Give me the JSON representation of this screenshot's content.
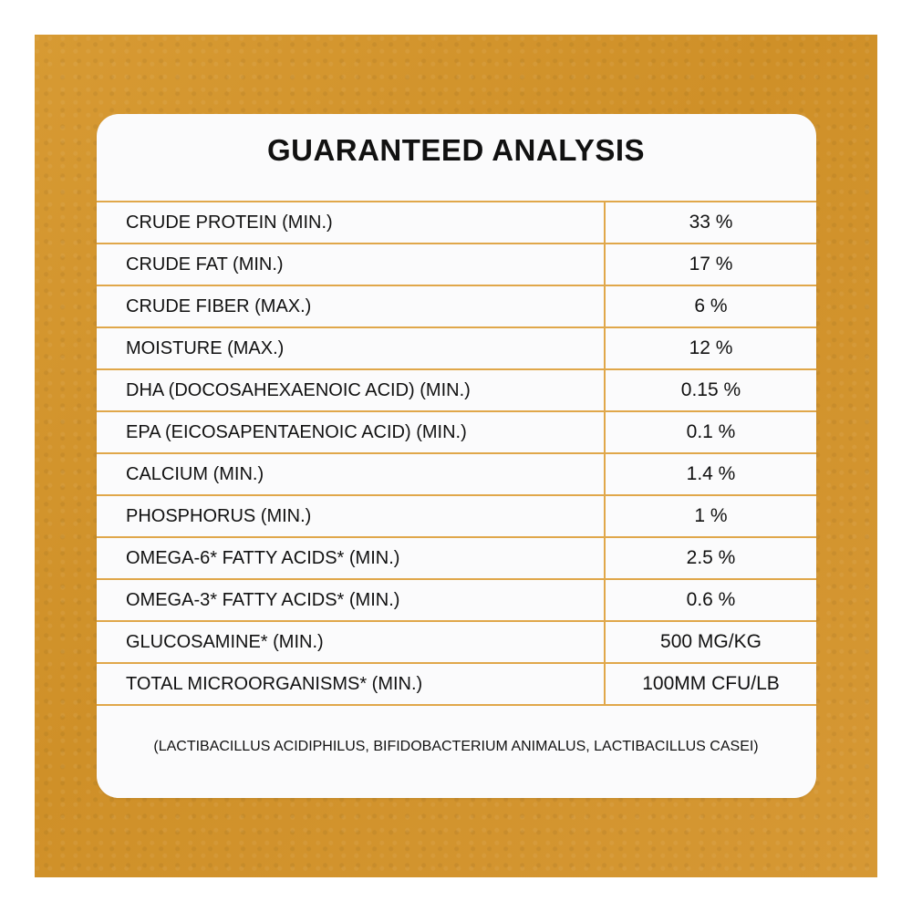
{
  "card": {
    "title": "GUARANTEED ANALYSIS",
    "footnote": "(LACTIBACILLUS ACIDIPHILUS, BIFIDOBACTERIUM ANIMALUS, LACTIBACILLUS CASEI)"
  },
  "rows": [
    {
      "label": "CRUDE PROTEIN (MIN.)",
      "value": "33 %"
    },
    {
      "label": "CRUDE FAT (MIN.)",
      "value": "17 %"
    },
    {
      "label": "CRUDE FIBER (MAX.)",
      "value": "6 %"
    },
    {
      "label": "MOISTURE (MAX.)",
      "value": "12 %"
    },
    {
      "label": "DHA (DOCOSAHEXAENOIC ACID) (MIN.)",
      "value": "0.15 %"
    },
    {
      "label": "EPA (EICOSAPENTAENOIC ACID) (MIN.)",
      "value": "0.1 %"
    },
    {
      "label": "CALCIUM (MIN.)",
      "value": "1.4 %"
    },
    {
      "label": "PHOSPHORUS (MIN.)",
      "value": "1 %"
    },
    {
      "label": "OMEGA-6* FATTY ACIDS* (MIN.)",
      "value": "2.5 %"
    },
    {
      "label": "OMEGA-3* FATTY ACIDS* (MIN.)",
      "value": "0.6 %"
    },
    {
      "label": "GLUCOSAMINE* (MIN.)",
      "value": "500 MG/KG"
    },
    {
      "label": "TOTAL MICROORGANISMS* (MIN.)",
      "value": "100MM CFU/LB"
    }
  ],
  "colors": {
    "background": "#d3952e",
    "card": "#fbfbfc",
    "divider": "#e0a74a",
    "text": "#111111"
  }
}
